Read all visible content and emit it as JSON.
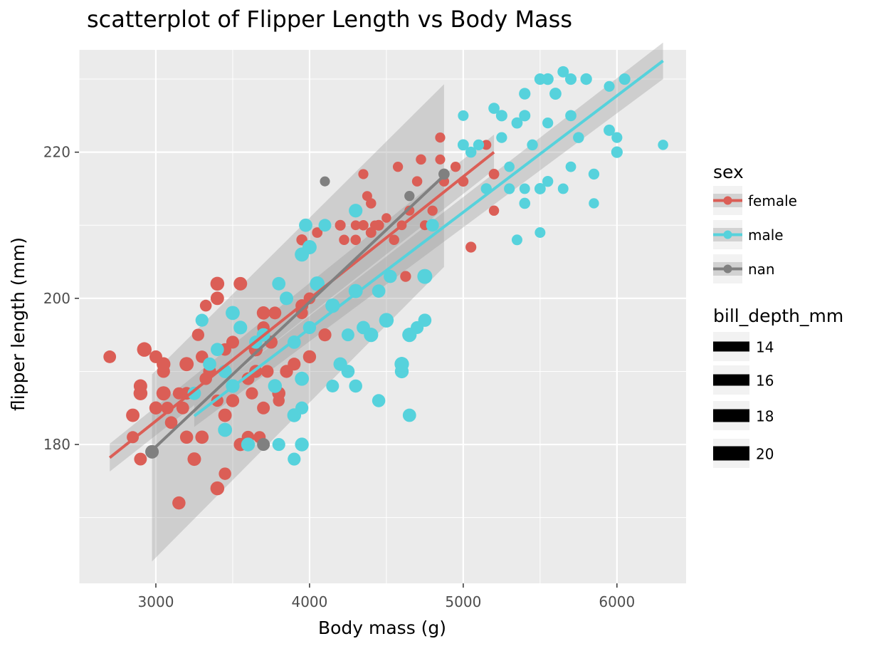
{
  "chart_data": {
    "type": "scatter",
    "title": "scatterplot of Flipper Length vs Body Mass",
    "xlabel": "Body mass (g)",
    "ylabel": "flipper length (mm)",
    "xlim": [
      2500,
      6450
    ],
    "ylim": [
      161,
      234
    ],
    "x_ticks": [
      3000,
      4000,
      5000,
      6000
    ],
    "y_ticks": [
      180,
      200,
      220
    ],
    "grid": true,
    "legend_placement": "right",
    "colors": {
      "panel_bg": "#ebebeb",
      "grid": "#ffffff",
      "female": "#db5e56",
      "male": "#56d2dc",
      "nan": "#808080",
      "ribbon": "#999999",
      "text": "#000000",
      "tick_text": "#4d4d4d"
    },
    "legend_color": {
      "title": "sex",
      "entries": [
        "female",
        "male",
        "nan"
      ]
    },
    "legend_size": {
      "title": "bill_depth_mm",
      "entries": [
        "14",
        "16",
        "18",
        "20"
      ],
      "values": [
        14,
        16,
        18,
        20
      ]
    },
    "size_range": [
      13.1,
      21.5
    ],
    "series": [
      {
        "name": "female",
        "points": [
          [
            2700,
            192,
            17.8
          ],
          [
            2850,
            181,
            17.0
          ],
          [
            2850,
            184,
            18.9
          ],
          [
            2900,
            178,
            17.9
          ],
          [
            2900,
            187,
            19.5
          ],
          [
            2900,
            188,
            19.0
          ],
          [
            2925,
            193,
            20.5
          ],
          [
            3000,
            192,
            18.0
          ],
          [
            3000,
            185,
            18.4
          ],
          [
            3050,
            187,
            20.0
          ],
          [
            3050,
            190,
            18.2
          ],
          [
            3050,
            191,
            19.4
          ],
          [
            3075,
            185,
            17.5
          ],
          [
            3100,
            183,
            17.7
          ],
          [
            3150,
            172,
            18.5
          ],
          [
            3150,
            187,
            17.0
          ],
          [
            3175,
            185,
            17.9
          ],
          [
            3200,
            181,
            18.5
          ],
          [
            3200,
            187,
            17.9
          ],
          [
            3200,
            191,
            19.9
          ],
          [
            3250,
            187,
            18.1
          ],
          [
            3250,
            178,
            19.0
          ],
          [
            3275,
            195,
            17.3
          ],
          [
            3300,
            181,
            18.7
          ],
          [
            3300,
            192,
            17.5
          ],
          [
            3325,
            189,
            17.6
          ],
          [
            3325,
            199,
            16.6
          ],
          [
            3350,
            190,
            18.3
          ],
          [
            3400,
            174,
            19.5
          ],
          [
            3400,
            186,
            17.2
          ],
          [
            3400,
            202,
            19.5
          ],
          [
            3400,
            200,
            18.9
          ],
          [
            3450,
            176,
            17.5
          ],
          [
            3450,
            184,
            18.9
          ],
          [
            3450,
            190,
            16.9
          ],
          [
            3450,
            193,
            17.6
          ],
          [
            3500,
            194,
            18.1
          ],
          [
            3500,
            186,
            18.4
          ],
          [
            3550,
            202,
            19.0
          ],
          [
            3550,
            180,
            18.6
          ],
          [
            3600,
            181,
            17.9
          ],
          [
            3600,
            189,
            17.8
          ],
          [
            3625,
            187,
            17.2
          ],
          [
            3650,
            193,
            19.5
          ],
          [
            3650,
            190,
            18.3
          ],
          [
            3675,
            181,
            17.1
          ],
          [
            3700,
            185,
            18.0
          ],
          [
            3700,
            196,
            17.5
          ],
          [
            3700,
            198,
            18.7
          ],
          [
            3725,
            190,
            17.9
          ],
          [
            3750,
            194,
            18.2
          ],
          [
            3775,
            198,
            17.9
          ],
          [
            3800,
            187,
            18.6
          ],
          [
            3800,
            186,
            16.5
          ],
          [
            3850,
            190,
            18.3
          ],
          [
            3900,
            191,
            18.1
          ],
          [
            3950,
            199,
            17.9
          ],
          [
            3950,
            198,
            17.2
          ],
          [
            3950,
            208,
            15.5
          ],
          [
            4000,
            200,
            16.6
          ],
          [
            4000,
            192,
            18.4
          ],
          [
            4050,
            209,
            14.8
          ],
          [
            4100,
            195,
            18.2
          ],
          [
            4200,
            210,
            15.1
          ],
          [
            4225,
            208,
            14.5
          ],
          [
            4300,
            210,
            13.8
          ],
          [
            4300,
            208,
            14.6
          ],
          [
            4350,
            210,
            14.5
          ],
          [
            4350,
            217,
            14.2
          ],
          [
            4375,
            214,
            14.0
          ],
          [
            4400,
            209,
            15.0
          ],
          [
            4400,
            213,
            14.5
          ],
          [
            4425,
            210,
            13.5
          ],
          [
            4450,
            210,
            15.1
          ],
          [
            4500,
            211,
            13.5
          ],
          [
            4550,
            208,
            14.5
          ],
          [
            4575,
            218,
            14.3
          ],
          [
            4600,
            210,
            13.8
          ],
          [
            4625,
            203,
            15.3
          ],
          [
            4650,
            212,
            14.1
          ],
          [
            4700,
            216,
            14.5
          ],
          [
            4725,
            219,
            14.5
          ],
          [
            4750,
            210,
            13.9
          ],
          [
            4800,
            212,
            14.3
          ],
          [
            4850,
            219,
            14.0
          ],
          [
            4850,
            222,
            14.2
          ],
          [
            4875,
            216,
            14.4
          ],
          [
            4950,
            218,
            14.3
          ],
          [
            5000,
            216,
            14.8
          ],
          [
            5050,
            207,
            15.2
          ],
          [
            5150,
            221,
            14.1
          ],
          [
            5200,
            217,
            14.8
          ],
          [
            5200,
            212,
            14.4
          ]
        ]
      },
      {
        "name": "male",
        "points": [
          [
            3250,
            187,
            18.8
          ],
          [
            3300,
            197,
            18.2
          ],
          [
            3350,
            191,
            18.7
          ],
          [
            3400,
            193,
            18.6
          ],
          [
            3450,
            182,
            19.8
          ],
          [
            3450,
            190,
            19.0
          ],
          [
            3500,
            198,
            19.8
          ],
          [
            3500,
            188,
            19.3
          ],
          [
            3550,
            196,
            19.2
          ],
          [
            3600,
            180,
            19.4
          ],
          [
            3650,
            194,
            18.5
          ],
          [
            3700,
            195,
            18.9
          ],
          [
            3775,
            188,
            19.5
          ],
          [
            3800,
            202,
            18.8
          ],
          [
            3800,
            180,
            18.2
          ],
          [
            3850,
            200,
            19.0
          ],
          [
            3900,
            194,
            18.8
          ],
          [
            3900,
            184,
            19.5
          ],
          [
            3900,
            178,
            18.2
          ],
          [
            3950,
            185,
            18.2
          ],
          [
            3950,
            180,
            19.4
          ],
          [
            3950,
            189,
            19.8
          ],
          [
            3950,
            206,
            19.9
          ],
          [
            3975,
            210,
            18.8
          ],
          [
            4000,
            207,
            20.0
          ],
          [
            4000,
            196,
            18.4
          ],
          [
            4050,
            202,
            20.7
          ],
          [
            4100,
            210,
            17.9
          ],
          [
            4150,
            188,
            18.0
          ],
          [
            4150,
            199,
            20.3
          ],
          [
            4200,
            191,
            19.2
          ],
          [
            4250,
            190,
            18.7
          ],
          [
            4250,
            195,
            18.0
          ],
          [
            4300,
            188,
            18.5
          ],
          [
            4300,
            201,
            19.9
          ],
          [
            4300,
            212,
            19.2
          ],
          [
            4350,
            196,
            18.8
          ],
          [
            4400,
            195,
            20.2
          ],
          [
            4450,
            186,
            18.5
          ],
          [
            4450,
            201,
            18.7
          ],
          [
            4500,
            197,
            20.5
          ],
          [
            4525,
            203,
            18.6
          ],
          [
            4600,
            191,
            20.3
          ],
          [
            4600,
            190,
            19.4
          ],
          [
            4650,
            184,
            18.8
          ],
          [
            4650,
            195,
            20.2
          ],
          [
            4700,
            196,
            18.1
          ],
          [
            4750,
            197,
            18.6
          ],
          [
            4750,
            203,
            21.0
          ],
          [
            4800,
            210,
            18.0
          ],
          [
            5000,
            225,
            15.0
          ],
          [
            5000,
            221,
            15.8
          ],
          [
            5050,
            220,
            15.5
          ],
          [
            5100,
            221,
            15.3
          ],
          [
            5150,
            215,
            15.4
          ],
          [
            5200,
            226,
            15.7
          ],
          [
            5250,
            225,
            16.0
          ],
          [
            5250,
            222,
            15.3
          ],
          [
            5300,
            215,
            15.2
          ],
          [
            5300,
            218,
            14.6
          ],
          [
            5350,
            208,
            15.0
          ],
          [
            5350,
            224,
            15.8
          ],
          [
            5400,
            228,
            16.3
          ],
          [
            5400,
            213,
            15.6
          ],
          [
            5400,
            215,
            14.9
          ],
          [
            5400,
            225,
            16.0
          ],
          [
            5450,
            221,
            15.4
          ],
          [
            5500,
            209,
            15.0
          ],
          [
            5500,
            230,
            16.1
          ],
          [
            5500,
            215,
            15.8
          ],
          [
            5550,
            216,
            15.4
          ],
          [
            5550,
            224,
            15.3
          ],
          [
            5550,
            230,
            16.4
          ],
          [
            5600,
            228,
            16.8
          ],
          [
            5650,
            215,
            14.9
          ],
          [
            5650,
            231,
            15.9
          ],
          [
            5700,
            230,
            16.1
          ],
          [
            5700,
            218,
            14.8
          ],
          [
            5700,
            225,
            15.7
          ],
          [
            5750,
            222,
            15.5
          ],
          [
            5800,
            230,
            16.3
          ],
          [
            5850,
            217,
            15.3
          ],
          [
            5850,
            213,
            14.4
          ],
          [
            5950,
            229,
            15.1
          ],
          [
            5950,
            223,
            15.9
          ],
          [
            6000,
            220,
            16.2
          ],
          [
            6000,
            222,
            15.2
          ],
          [
            6050,
            230,
            16.2
          ],
          [
            6300,
            221,
            14.5
          ]
        ]
      },
      {
        "name": "nan",
        "points": [
          [
            2975,
            179,
            19.0
          ],
          [
            3700,
            180,
            18.0
          ],
          [
            4100,
            216,
            14.1
          ],
          [
            4650,
            214,
            14.3
          ],
          [
            4875,
            217,
            15.7
          ]
        ]
      }
    ],
    "trend": [
      {
        "name": "female",
        "x": [
          2700,
          5200
        ],
        "y": [
          178.2,
          220.0
        ],
        "ci_lo": [
          176.3,
          217.6
        ],
        "ci_hi": [
          180.1,
          222.4
        ]
      },
      {
        "name": "male",
        "x": [
          3250,
          6300
        ],
        "y": [
          183.9,
          232.5
        ],
        "ci_lo": [
          182.4,
          230.0
        ],
        "ci_hi": [
          185.4,
          235.0
        ]
      },
      {
        "name": "nan",
        "x": [
          2975,
          4875
        ],
        "y": [
          179.2,
          216.8
        ],
        "ci_lo": [
          164.0,
          204.3
        ],
        "ci_hi": [
          189.6,
          229.3
        ]
      }
    ]
  }
}
